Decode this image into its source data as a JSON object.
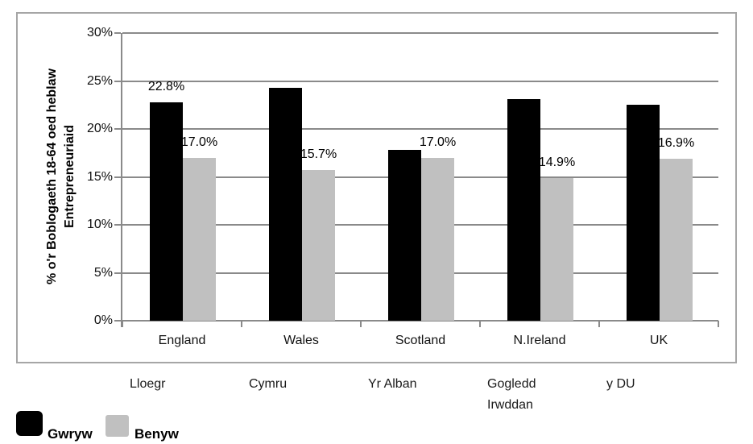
{
  "chart_data": {
    "type": "bar",
    "title": "",
    "ylabel": "% o'r Boblogaeth 18-64 oed heblaw\nEntrepreneuriaid",
    "categories": [
      "England",
      "Wales",
      "Scotland",
      "N.Ireland",
      "UK"
    ],
    "categories_welsh": [
      "Lloegr",
      "Cymru",
      "Yr Alban",
      "Gogledd\nIrwddan",
      "y DU"
    ],
    "series": [
      {
        "name": "Gwryw",
        "color": "#000000",
        "values": [
          22.8,
          24.3,
          17.8,
          23.1,
          22.5
        ],
        "data_labels": [
          "22.8%",
          "",
          "",
          "",
          ""
        ]
      },
      {
        "name": "Benyw",
        "color": "#c0c0c0",
        "values": [
          17.0,
          15.7,
          17.0,
          14.9,
          16.9
        ],
        "data_labels": [
          "17.0%",
          "15.7%",
          "17.0%",
          "14.9%",
          "16.9%"
        ]
      }
    ],
    "ylim": [
      0,
      30
    ],
    "ytick_step": 5,
    "ytick_labels": [
      "0%",
      "5%",
      "10%",
      "15%",
      "20%",
      "25%",
      "30%"
    ],
    "grid": true,
    "legend_position": "bottom-left",
    "colors": {
      "gridline": "#8a8a8a",
      "chart_border": "#a6a6a6",
      "bar_black": "#000000",
      "bar_gray": "#c0c0c0"
    }
  },
  "legend": {
    "items": [
      {
        "label": "Gwryw",
        "color": "#000000"
      },
      {
        "label": "Benyw",
        "color": "#c0c0c0"
      }
    ]
  }
}
